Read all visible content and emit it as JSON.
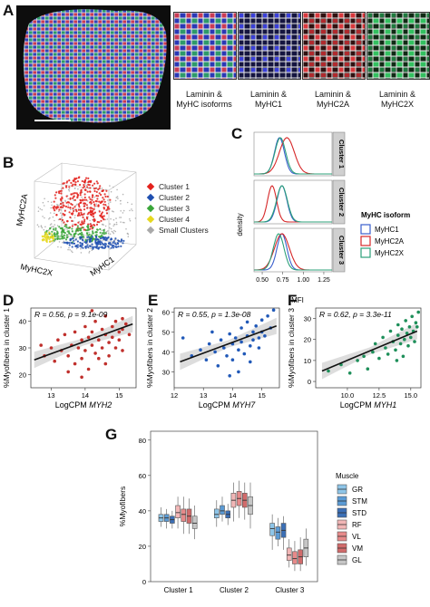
{
  "panels": {
    "A": {
      "letter": "A",
      "captions": [
        "Laminin &\nMyHC isoforms",
        "Laminin &\nMyHC1",
        "Laminin &\nMyHC2A",
        "Laminin &\nMyHC2X"
      ],
      "colors": {
        "composite_bg": "#1b2a6b",
        "myhc1": "#3a3fd8",
        "myhc2a": "#d8383c",
        "myhc2x": "#33c060"
      }
    },
    "B": {
      "letter": "B",
      "axes": {
        "z": "MyHC2A",
        "x": "MyHC2X",
        "y": "MyHC1"
      },
      "legend": [
        {
          "label": "Cluster 1",
          "color": "#e3211c"
        },
        {
          "label": "Cluster 2",
          "color": "#1f4fb0"
        },
        {
          "label": "Cluster 3",
          "color": "#3aa63a"
        },
        {
          "label": "Cluster 4",
          "color": "#e6d81e"
        },
        {
          "label": "Small Clusters",
          "color": "#a9a9a9"
        }
      ]
    },
    "C": {
      "letter": "C",
      "ylabel": "density",
      "xlabel": "MFI",
      "strip_labels": [
        "Cluster 1",
        "Cluster 2",
        "Cluster 3"
      ],
      "xticks": [
        "0.50",
        "0.75",
        "1.00",
        "1.25"
      ],
      "legend_title": "MyHC isoform",
      "legend": [
        {
          "label": "MyHC1",
          "color": "#3a5fcd"
        },
        {
          "label": "MyHC2A",
          "color": "#d62728"
        },
        {
          "label": "MyHC2X",
          "color": "#2ca07a"
        }
      ]
    },
    "D": {
      "letter": "D",
      "stats": "R = 0.56, p = 9.1e-09",
      "ylabel": "%Myofibers in cluster 1",
      "xlabel_prefix": "LogCPM ",
      "xlabel_gene": "MYH2",
      "xticks": [
        "13",
        "14",
        "15"
      ],
      "yticks": [
        "20",
        "30",
        "40"
      ],
      "color": "#c0302c"
    },
    "E": {
      "letter": "E",
      "stats": "R = 0.55, p = 1.3e-08",
      "ylabel": "%Myofibers in cluster 2",
      "xlabel_prefix": "LogCPM ",
      "xlabel_gene": "MYH7",
      "xticks": [
        "12",
        "13",
        "14",
        "15"
      ],
      "yticks": [
        "30",
        "40",
        "50",
        "60"
      ],
      "color": "#2159b8"
    },
    "F": {
      "letter": "F",
      "stats": "R = 0.62, p = 3.3e-11",
      "ylabel": "%Myofibers in cluster 3",
      "xlabel_prefix": "LogCPM ",
      "xlabel_gene": "MYH1",
      "xticks": [
        "10.0",
        "12.5",
        "15.0"
      ],
      "yticks": [
        "0",
        "10",
        "20",
        "30"
      ],
      "color": "#1e8f5a"
    },
    "G": {
      "letter": "G",
      "ylabel": "%Myofibers",
      "legend_title": "Muscle"
    }
  },
  "chart_data": [
    {
      "type": "line",
      "panel": "C",
      "xlabel": "MFI",
      "ylabel": "density",
      "xlim": [
        0.4,
        1.35
      ],
      "facets": [
        "Cluster 1",
        "Cluster 2",
        "Cluster 3"
      ],
      "series_peaks": {
        "Cluster 1": {
          "MyHC1": 0.71,
          "MyHC2A": 0.8,
          "MyHC2X": 0.72
        },
        "Cluster 2": {
          "MyHC1": 0.74,
          "MyHC2A": 0.62,
          "MyHC2X": 0.74
        },
        "Cluster 3": {
          "MyHC1": 0.74,
          "MyHC2A": 0.74,
          "MyHC2X": 0.7
        }
      }
    },
    {
      "type": "scatter",
      "panel": "D",
      "xlim": [
        12.4,
        15.5
      ],
      "ylim": [
        15,
        45
      ],
      "fit": {
        "x": [
          12.5,
          15.4
        ],
        "y": [
          25.5,
          39.0
        ]
      },
      "points": [
        [
          12.7,
          31
        ],
        [
          12.8,
          27
        ],
        [
          13.0,
          30
        ],
        [
          13.1,
          25
        ],
        [
          13.2,
          33
        ],
        [
          13.3,
          29
        ],
        [
          13.4,
          35
        ],
        [
          13.5,
          27
        ],
        [
          13.6,
          31
        ],
        [
          13.7,
          24
        ],
        [
          13.7,
          36
        ],
        [
          13.8,
          30
        ],
        [
          13.9,
          33
        ],
        [
          13.9,
          26
        ],
        [
          14.0,
          38
        ],
        [
          14.0,
          29
        ],
        [
          14.1,
          34
        ],
        [
          14.1,
          22
        ],
        [
          14.2,
          36
        ],
        [
          14.2,
          31
        ],
        [
          14.3,
          28
        ],
        [
          14.3,
          40
        ],
        [
          14.4,
          33
        ],
        [
          14.4,
          26
        ],
        [
          14.5,
          37
        ],
        [
          14.5,
          30
        ],
        [
          14.6,
          35
        ],
        [
          14.6,
          42
        ],
        [
          14.7,
          32
        ],
        [
          14.7,
          27
        ],
        [
          14.8,
          38
        ],
        [
          14.8,
          34
        ],
        [
          14.9,
          30
        ],
        [
          14.9,
          40
        ],
        [
          15.0,
          36
        ],
        [
          15.0,
          33
        ],
        [
          15.1,
          41
        ],
        [
          15.1,
          37
        ],
        [
          15.2,
          39
        ],
        [
          15.3,
          35
        ],
        [
          13.5,
          21
        ],
        [
          13.9,
          19
        ],
        [
          14.6,
          24
        ],
        [
          14.2,
          44
        ],
        [
          15.1,
          29
        ]
      ]
    },
    {
      "type": "scatter",
      "panel": "E",
      "xlim": [
        12.0,
        15.6
      ],
      "ylim": [
        22,
        62
      ],
      "fit": {
        "x": [
          12.2,
          15.5
        ],
        "y": [
          35,
          53
        ]
      },
      "points": [
        [
          12.3,
          47
        ],
        [
          12.6,
          38
        ],
        [
          12.9,
          41
        ],
        [
          13.1,
          36
        ],
        [
          13.2,
          44
        ],
        [
          13.4,
          40
        ],
        [
          13.5,
          33
        ],
        [
          13.6,
          46
        ],
        [
          13.7,
          42
        ],
        [
          13.8,
          38
        ],
        [
          13.9,
          49
        ],
        [
          14.0,
          44
        ],
        [
          14.0,
          36
        ],
        [
          14.1,
          47
        ],
        [
          14.2,
          41
        ],
        [
          14.3,
          52
        ],
        [
          14.3,
          45
        ],
        [
          14.4,
          39
        ],
        [
          14.5,
          48
        ],
        [
          14.5,
          55
        ],
        [
          14.6,
          43
        ],
        [
          14.7,
          50
        ],
        [
          14.7,
          46
        ],
        [
          14.8,
          53
        ],
        [
          14.9,
          47
        ],
        [
          14.9,
          42
        ],
        [
          15.0,
          56
        ],
        [
          15.0,
          50
        ],
        [
          15.1,
          48
        ],
        [
          15.2,
          58
        ],
        [
          15.3,
          52
        ],
        [
          15.4,
          61
        ],
        [
          14.2,
          30
        ],
        [
          13.9,
          28
        ],
        [
          14.6,
          35
        ],
        [
          13.3,
          50
        ]
      ]
    },
    {
      "type": "scatter",
      "panel": "F",
      "xlim": [
        7.5,
        15.8
      ],
      "ylim": [
        -3,
        35
      ],
      "fit": {
        "x": [
          8.0,
          15.5
        ],
        "y": [
          5,
          24
        ]
      },
      "points": [
        [
          8.5,
          5
        ],
        [
          9.5,
          8
        ],
        [
          10.2,
          4
        ],
        [
          10.8,
          10
        ],
        [
          11.3,
          12
        ],
        [
          11.6,
          6
        ],
        [
          12.0,
          14
        ],
        [
          12.2,
          18
        ],
        [
          12.5,
          11
        ],
        [
          12.8,
          21
        ],
        [
          13.0,
          16
        ],
        [
          13.2,
          13
        ],
        [
          13.4,
          24
        ],
        [
          13.6,
          19
        ],
        [
          13.8,
          15
        ],
        [
          14.0,
          22
        ],
        [
          14.0,
          27
        ],
        [
          14.2,
          18
        ],
        [
          14.3,
          25
        ],
        [
          14.5,
          20
        ],
        [
          14.6,
          29
        ],
        [
          14.7,
          23
        ],
        [
          14.8,
          17
        ],
        [
          14.9,
          26
        ],
        [
          15.0,
          21
        ],
        [
          15.1,
          31
        ],
        [
          15.2,
          24
        ],
        [
          15.3,
          19
        ],
        [
          15.4,
          28
        ],
        [
          15.5,
          26
        ],
        [
          15.6,
          33
        ],
        [
          13.9,
          10
        ],
        [
          14.4,
          12
        ]
      ]
    },
    {
      "type": "box",
      "panel": "G",
      "ylabel": "%Myofibers",
      "ylim": [
        0,
        85
      ],
      "categories": [
        "Cluster 1",
        "Cluster 2",
        "Cluster 3"
      ],
      "yticks": [
        "0",
        "20",
        "40",
        "60",
        "80"
      ],
      "groups": [
        {
          "name": "GR",
          "color": "#8ec5e8",
          "boxes": [
            [
              31,
              34,
              36,
              38,
              42
            ],
            [
              31,
              36,
              38,
              41,
              46
            ],
            [
              18,
              26,
              30,
              33,
              38
            ]
          ]
        },
        {
          "name": "STM",
          "color": "#5b9bd5",
          "boxes": [
            [
              30,
              34,
              36,
              38,
              41
            ],
            [
              34,
              38,
              40,
              43,
              48
            ],
            [
              20,
              24,
              28,
              31,
              36
            ]
          ]
        },
        {
          "name": "STD",
          "color": "#3b6fb6",
          "boxes": [
            [
              30,
              33,
              35,
              37,
              40
            ],
            [
              32,
              36,
              38,
              40,
              44
            ],
            [
              18,
              25,
              29,
              33,
              37
            ]
          ]
        },
        {
          "name": "RF",
          "color": "#f2b6b6",
          "boxes": [
            [
              30,
              36,
              39,
              43,
              48
            ],
            [
              34,
              42,
              46,
              50,
              56
            ],
            [
              8,
              12,
              15,
              19,
              24
            ]
          ]
        },
        {
          "name": "VL",
          "color": "#e78a8a",
          "boxes": [
            [
              27,
              34,
              38,
              41,
              48
            ],
            [
              36,
              43,
              47,
              51,
              57
            ],
            [
              6,
              10,
              13,
              17,
              23
            ]
          ]
        },
        {
          "name": "VM",
          "color": "#d16b6b",
          "boxes": [
            [
              27,
              33,
              37,
              41,
              47
            ],
            [
              35,
              42,
              46,
              50,
              56
            ],
            [
              6,
              10,
              14,
              18,
              25
            ]
          ]
        },
        {
          "name": "GL",
          "color": "#c6c6c6",
          "boxes": [
            [
              24,
              30,
              33,
              37,
              43
            ],
            [
              30,
              38,
              43,
              48,
              56
            ],
            [
              9,
              14,
              19,
              24,
              30
            ]
          ]
        }
      ]
    }
  ]
}
